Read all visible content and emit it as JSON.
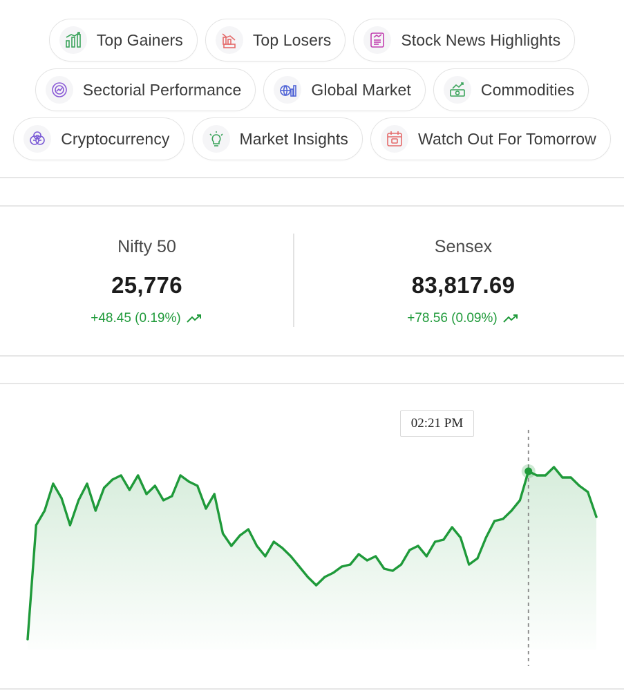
{
  "nav": {
    "rows": [
      [
        {
          "label": "Top Gainers",
          "icon": "top-gainers-icon",
          "color": "#3aa35a"
        },
        {
          "label": "Top Losers",
          "icon": "top-losers-icon",
          "color": "#e46a6a"
        },
        {
          "label": "Stock News Highlights",
          "icon": "news-icon",
          "color": "#c23fb0"
        }
      ],
      [
        {
          "label": "Sectorial Performance",
          "icon": "sector-pie-icon",
          "color": "#8a5ad6"
        },
        {
          "label": "Global Market",
          "icon": "global-market-icon",
          "color": "#4f63d6"
        },
        {
          "label": "Commodities",
          "icon": "commodities-icon",
          "color": "#3aa35a"
        }
      ],
      [
        {
          "label": "Cryptocurrency",
          "icon": "crypto-coins-icon",
          "color": "#7a5ad6"
        },
        {
          "label": "Market Insights",
          "icon": "insights-bulb-icon",
          "color": "#3aa35a"
        },
        {
          "label": "Watch Out For Tomorrow",
          "icon": "calendar-icon",
          "color": "#e46a6a"
        }
      ]
    ]
  },
  "indices": [
    {
      "name": "Nifty 50",
      "value": "25,776",
      "change": "+48.45 (0.19%)"
    },
    {
      "name": "Sensex",
      "value": "83,817.69",
      "change": "+78.56 (0.09%)"
    }
  ],
  "colors": {
    "positive": "#1f9a3a",
    "line": "#1f9a3a"
  },
  "chart_data": {
    "type": "area",
    "tooltip_time": "02:21 PM",
    "highlight_index": 59,
    "ylim": [
      0,
      100
    ],
    "grid": false,
    "values": [
      5,
      60,
      67,
      80,
      73,
      60,
      72,
      80,
      67,
      78,
      82,
      84,
      77,
      84,
      75,
      79,
      72,
      74,
      84,
      81,
      79,
      68,
      75,
      56,
      50,
      55,
      58,
      50,
      45,
      52,
      49,
      45,
      40,
      35,
      31,
      35,
      37,
      40,
      41,
      46,
      43,
      45,
      39,
      38,
      41,
      48,
      50,
      45,
      52,
      53,
      59,
      54,
      41,
      44,
      54,
      62,
      63,
      67,
      72,
      86,
      84,
      84,
      88,
      83,
      83,
      79,
      76,
      64
    ]
  }
}
